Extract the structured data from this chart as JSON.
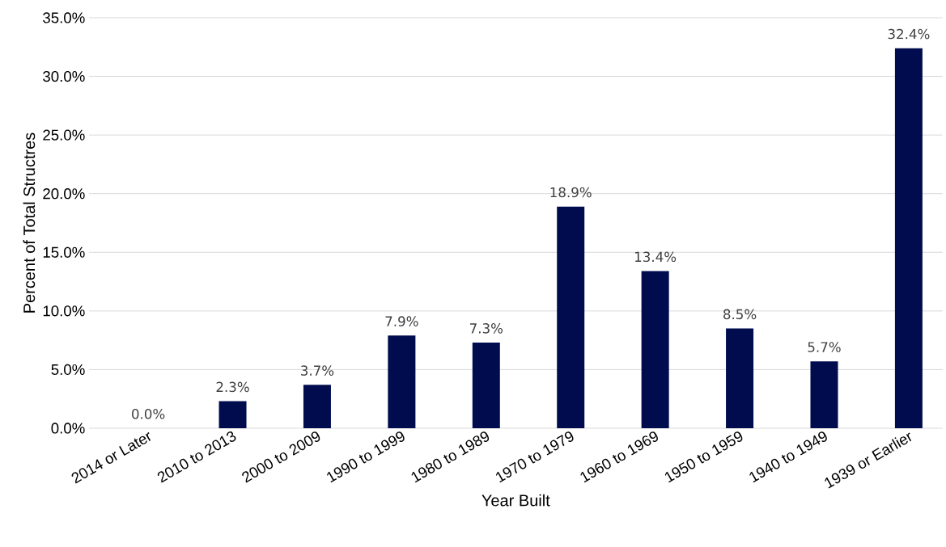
{
  "chart_data": {
    "type": "bar",
    "xlabel": "Year Built",
    "ylabel": "Percent of Total Structres",
    "categories": [
      "2014 or Later",
      "2010 to 2013",
      "2000 to 2009",
      "1990 to 1999",
      "1980 to 1989",
      "1970 to 1979",
      "1960 to 1969",
      "1950 to 1959",
      "1940 to 1949",
      "1939 or Earlier"
    ],
    "values": [
      0.0,
      2.3,
      3.7,
      7.9,
      7.3,
      18.9,
      13.4,
      8.5,
      5.7,
      32.4
    ],
    "value_labels": [
      "0.0%",
      "2.3%",
      "3.7%",
      "7.9%",
      "7.3%",
      "18.9%",
      "13.4%",
      "8.5%",
      "5.7%",
      "32.4%"
    ],
    "color": "#000c4e",
    "ylim": [
      0,
      35
    ],
    "yticks": [
      {
        "value": 0,
        "label": "0.0%"
      },
      {
        "value": 5,
        "label": "5.0%"
      },
      {
        "value": 10,
        "label": "10.0%"
      },
      {
        "value": 15,
        "label": "15.0%"
      },
      {
        "value": 20,
        "label": "20.0%"
      },
      {
        "value": 25,
        "label": "25.0%"
      },
      {
        "value": 30,
        "label": "30.0%"
      },
      {
        "value": 35,
        "label": "35.0%"
      }
    ],
    "grid": "y"
  }
}
